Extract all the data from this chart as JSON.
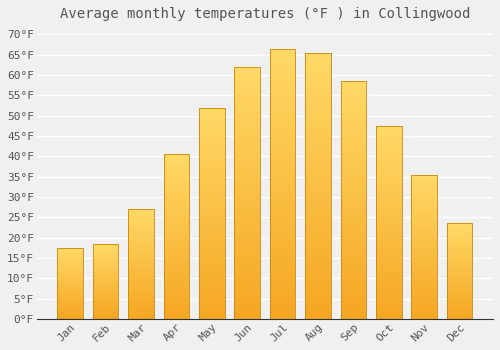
{
  "title": "Average monthly temperatures (°F ) in Collingwood",
  "months": [
    "Jan",
    "Feb",
    "Mar",
    "Apr",
    "May",
    "Jun",
    "Jul",
    "Aug",
    "Sep",
    "Oct",
    "Nov",
    "Dec"
  ],
  "values": [
    17.5,
    18.5,
    27,
    40.5,
    52,
    62,
    66.5,
    65.5,
    58.5,
    47.5,
    35.5,
    23.5
  ],
  "bar_color_bottom": "#F5A623",
  "bar_color_top": "#FFD966",
  "bar_edge_color": "#C8860A",
  "background_color": "#F0F0F0",
  "grid_color": "#FFFFFF",
  "text_color": "#555555",
  "ylim": [
    0,
    72
  ],
  "yticks": [
    0,
    5,
    10,
    15,
    20,
    25,
    30,
    35,
    40,
    45,
    50,
    55,
    60,
    65,
    70
  ],
  "ytick_labels": [
    "0°F",
    "5°F",
    "10°F",
    "15°F",
    "20°F",
    "25°F",
    "30°F",
    "35°F",
    "40°F",
    "45°F",
    "50°F",
    "55°F",
    "60°F",
    "65°F",
    "70°F"
  ],
  "title_fontsize": 10,
  "tick_fontsize": 8,
  "font_family": "monospace"
}
